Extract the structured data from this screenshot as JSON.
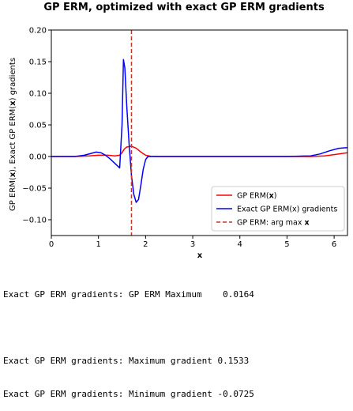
{
  "chart_data": {
    "type": "line",
    "title": "GP ERM, optimized with exact GP ERM gradients",
    "xlabel": "x",
    "ylabel": "GP ERM(x), Exact GP ERM(x) gradients",
    "xlim": [
      0,
      6.283
    ],
    "ylim": [
      -0.125,
      0.2
    ],
    "xticks": [
      0,
      1,
      2,
      3,
      4,
      5,
      6
    ],
    "yticks": [
      -0.1,
      -0.05,
      0.0,
      0.05,
      0.1,
      0.15,
      0.2
    ],
    "ytick_labels": [
      "−0.10",
      "−0.05",
      "0.00",
      "0.05",
      "0.10",
      "0.15",
      "0.20"
    ],
    "grid": false,
    "legend": "lower-right",
    "series": [
      {
        "name": "GP ERM(x)",
        "color": "#ff0000",
        "x": [
          0,
          0.5,
          0.8,
          1.0,
          1.2,
          1.35,
          1.45,
          1.5,
          1.55,
          1.6,
          1.7,
          1.8,
          1.9,
          2.0,
          2.1,
          2.3,
          3.0,
          4.0,
          5.0,
          5.5,
          5.8,
          6.0,
          6.283
        ],
        "y": [
          0,
          0,
          0.001,
          0.002,
          0.002,
          0.001,
          0.002,
          0.006,
          0.012,
          0.015,
          0.0164,
          0.013,
          0.007,
          0.002,
          0.0005,
          0,
          0,
          0,
          0,
          0,
          0.001,
          0.003,
          0.006
        ]
      },
      {
        "name": "Exact GP ERM(x) gradients",
        "color": "#0000ff",
        "x": [
          0,
          0.5,
          0.7,
          0.85,
          0.95,
          1.05,
          1.15,
          1.25,
          1.35,
          1.45,
          1.5,
          1.53,
          1.56,
          1.6,
          1.65,
          1.7,
          1.75,
          1.8,
          1.85,
          1.9,
          1.95,
          2.0,
          2.05,
          2.3,
          3.0,
          4.0,
          5.0,
          5.5,
          5.7,
          5.9,
          6.1,
          6.283
        ],
        "y": [
          0,
          0,
          0.002,
          0.005,
          0.007,
          0.006,
          0.002,
          -0.004,
          -0.011,
          -0.018,
          0.05,
          0.1533,
          0.14,
          0.08,
          0.02,
          -0.03,
          -0.06,
          -0.0725,
          -0.068,
          -0.045,
          -0.02,
          -0.005,
          0,
          0,
          0,
          0,
          0,
          0.001,
          0.004,
          0.009,
          0.013,
          0.014
        ]
      }
    ],
    "vline": {
      "name": "GP ERM: arg max x",
      "x": 1.7,
      "color": "#c0392b"
    }
  },
  "console": {
    "line1": "Exact GP ERM gradients: GP ERM Maximum    0.0164",
    "line2": "Exact GP ERM gradients: Maximum gradient 0.1533",
    "line3": "Exact GP ERM gradients: Minimum gradient -0.0725"
  }
}
